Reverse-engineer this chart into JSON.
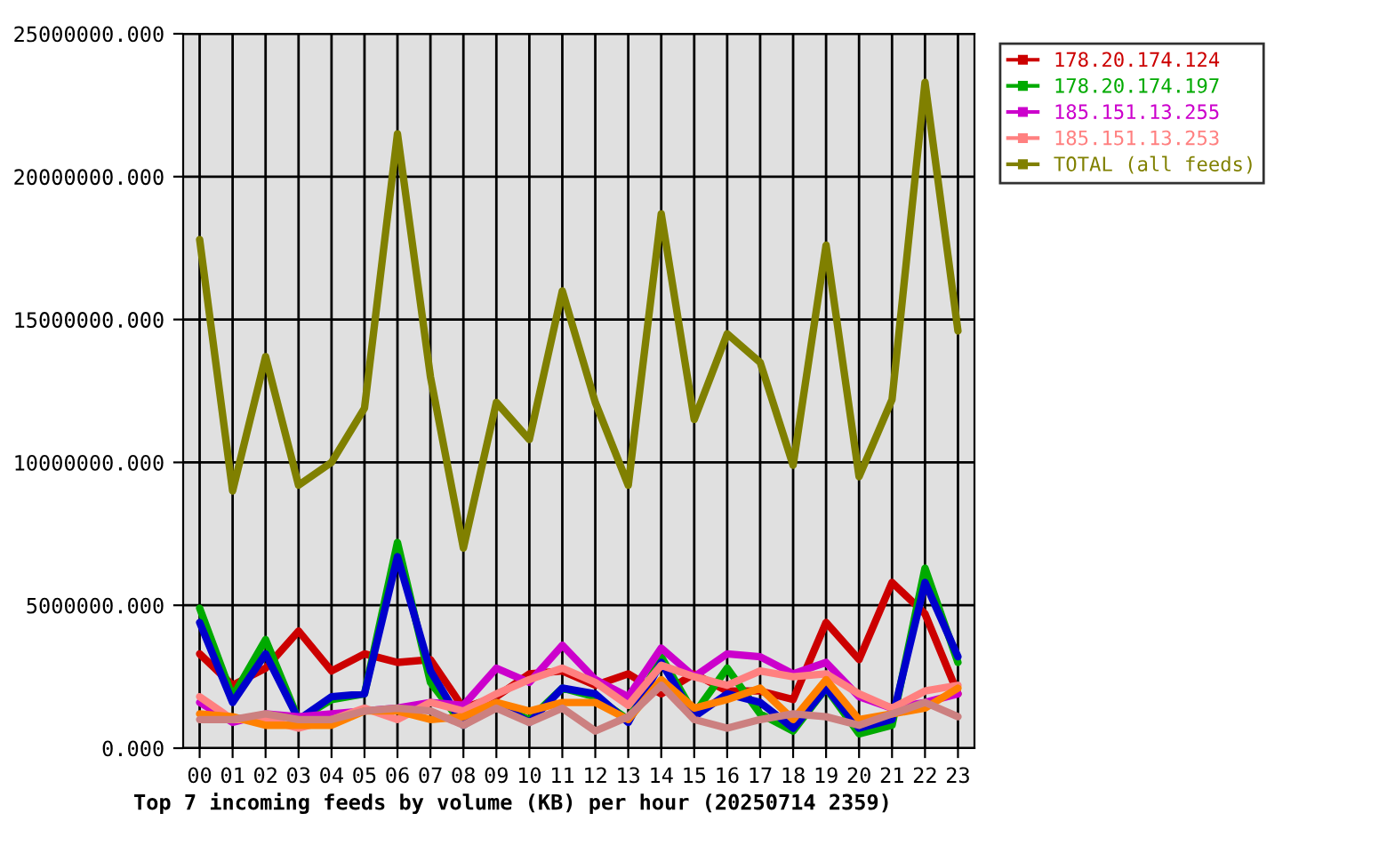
{
  "chart_data": {
    "type": "line",
    "title": "Top 7 incoming feeds by volume (KB) per hour (20250714 2359)",
    "categories": [
      "00",
      "01",
      "02",
      "03",
      "04",
      "05",
      "06",
      "07",
      "08",
      "09",
      "10",
      "11",
      "12",
      "13",
      "14",
      "15",
      "16",
      "17",
      "18",
      "19",
      "20",
      "21",
      "22",
      "23"
    ],
    "series": [
      {
        "name": "178.20.174.124",
        "color": "#cc0000",
        "values": [
          3300000,
          2200000,
          2800000,
          4100000,
          2700000,
          3300000,
          3000000,
          3100000,
          1400000,
          1800000,
          2600000,
          2700000,
          2200000,
          2600000,
          1900000,
          2600000,
          2000000,
          2000000,
          1700000,
          4400000,
          3100000,
          5800000,
          4700000,
          1900000
        ]
      },
      {
        "name": "178.20.174.197",
        "color": "#00aa00",
        "values": [
          4900000,
          1800000,
          3800000,
          1000000,
          1700000,
          1900000,
          7200000,
          2300000,
          800000,
          1500000,
          1000000,
          2100000,
          1800000,
          1000000,
          3200000,
          1200000,
          2800000,
          1200000,
          600000,
          2100000,
          500000,
          800000,
          6300000,
          3000000
        ]
      },
      {
        "color": "#0000cc",
        "values": [
          4400000,
          1600000,
          3300000,
          1000000,
          1800000,
          1900000,
          6700000,
          2700000,
          800000,
          1600000,
          900000,
          2100000,
          1900000,
          900000,
          3000000,
          1100000,
          1900000,
          1600000,
          700000,
          2100000,
          700000,
          1000000,
          5800000,
          3200000
        ]
      },
      {
        "name": "185.151.13.255",
        "color": "#cc00cc",
        "values": [
          1600000,
          900000,
          1200000,
          1100000,
          1200000,
          1300000,
          1400000,
          1600000,
          1500000,
          2800000,
          2300000,
          3600000,
          2400000,
          1800000,
          3500000,
          2500000,
          3300000,
          3200000,
          2600000,
          3000000,
          1800000,
          1400000,
          1600000,
          1900000
        ]
      },
      {
        "name": "185.151.13.253",
        "color": "#ff8080",
        "values": [
          1800000,
          1000000,
          1000000,
          700000,
          1000000,
          1400000,
          1000000,
          1600000,
          1300000,
          1900000,
          2400000,
          2800000,
          2300000,
          1500000,
          2900000,
          2500000,
          2200000,
          2700000,
          2500000,
          2600000,
          1900000,
          1400000,
          2000000,
          2200000
        ]
      },
      {
        "color": "#ff8000",
        "values": [
          1200000,
          1100000,
          800000,
          800000,
          800000,
          1300000,
          1300000,
          1000000,
          1100000,
          1600000,
          1300000,
          1600000,
          1600000,
          1000000,
          2400000,
          1400000,
          1700000,
          2100000,
          1000000,
          2400000,
          1000000,
          1200000,
          1400000,
          2100000
        ]
      },
      {
        "color": "#cc8080",
        "values": [
          1000000,
          1000000,
          1200000,
          1000000,
          1000000,
          1300000,
          1400000,
          1300000,
          800000,
          1400000,
          900000,
          1400000,
          600000,
          1100000,
          2200000,
          1000000,
          700000,
          1000000,
          1200000,
          1100000,
          800000,
          1200000,
          1600000,
          1100000
        ]
      },
      {
        "name": "TOTAL (all feeds)",
        "color": "#808000",
        "values": [
          17800000,
          9000000,
          13700000,
          9200000,
          10000000,
          11900000,
          21500000,
          13000000,
          7000000,
          12100000,
          10800000,
          16000000,
          12100000,
          9200000,
          18700000,
          11500000,
          14500000,
          13500000,
          9900000,
          17600000,
          9500000,
          12200000,
          23300000,
          14600000
        ]
      }
    ],
    "ylim": [
      0,
      25000000
    ],
    "yticks": [
      {
        "value": 0,
        "label": "0.000"
      },
      {
        "value": 5000000,
        "label": "5000000.000"
      },
      {
        "value": 10000000,
        "label": "10000000.000"
      },
      {
        "value": 15000000,
        "label": "15000000.000"
      },
      {
        "value": 20000000,
        "label": "20000000.000"
      },
      {
        "value": 25000000,
        "label": "25000000.000"
      }
    ],
    "grid": true,
    "legend": "right",
    "marker": "none",
    "line_style": "solid"
  }
}
